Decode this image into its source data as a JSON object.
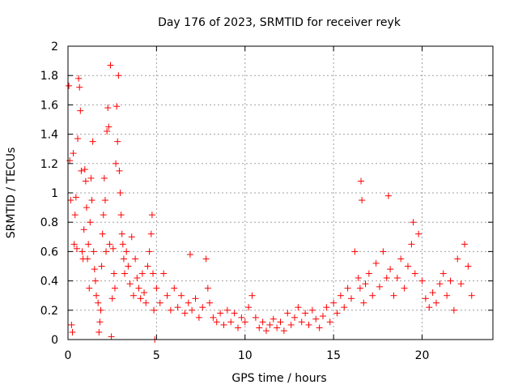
{
  "chart_data": {
    "type": "scatter",
    "title": "Day 176 of 2023, SRMTID for receiver reyk",
    "xlabel": "GPS time / hours",
    "ylabel": "SRMTID / TECUs",
    "xlim": [
      0,
      24
    ],
    "ylim": [
      0,
      2
    ],
    "xticks": [
      0,
      5,
      10,
      15,
      20
    ],
    "xtick_labels": [
      "0",
      "5",
      "10",
      "15",
      "20"
    ],
    "yticks": [
      0,
      0.2,
      0.4,
      0.6,
      0.8,
      1.0,
      1.2,
      1.4,
      1.6,
      1.8,
      2.0
    ],
    "ytick_labels": [
      "0",
      "0.2",
      "0.4",
      "0.6",
      "0.8",
      "1",
      "1.2",
      "1.4",
      "1.6",
      "1.8",
      "2"
    ],
    "grid": true,
    "marker": "+",
    "marker_color": "#ff0000",
    "series": [
      {
        "name": "SRMTID",
        "points": [
          [
            0.05,
            1.73
          ],
          [
            0.1,
            1.22
          ],
          [
            0.15,
            0.95
          ],
          [
            0.2,
            0.1
          ],
          [
            0.25,
            0.05
          ],
          [
            0.3,
            1.27
          ],
          [
            0.35,
            0.65
          ],
          [
            0.4,
            0.85
          ],
          [
            0.45,
            0.97
          ],
          [
            0.5,
            0.62
          ],
          [
            0.55,
            1.37
          ],
          [
            0.6,
            1.78
          ],
          [
            0.65,
            1.72
          ],
          [
            0.7,
            1.56
          ],
          [
            0.75,
            1.15
          ],
          [
            0.8,
            0.6
          ],
          [
            0.85,
            0.55
          ],
          [
            0.9,
            0.75
          ],
          [
            0.95,
            1.16
          ],
          [
            1.0,
            1.08
          ],
          [
            1.05,
            0.9
          ],
          [
            1.1,
            0.55
          ],
          [
            1.15,
            0.65
          ],
          [
            1.2,
            0.35
          ],
          [
            1.25,
            0.8
          ],
          [
            1.3,
            1.1
          ],
          [
            1.35,
            0.95
          ],
          [
            1.4,
            1.35
          ],
          [
            1.45,
            0.6
          ],
          [
            1.5,
            0.48
          ],
          [
            1.55,
            0.4
          ],
          [
            1.6,
            0.3
          ],
          [
            1.7,
            0.25
          ],
          [
            1.75,
            0.05
          ],
          [
            1.8,
            0.12
          ],
          [
            1.85,
            0.2
          ],
          [
            1.9,
            0.5
          ],
          [
            1.95,
            0.72
          ],
          [
            2.0,
            0.85
          ],
          [
            2.05,
            1.1
          ],
          [
            2.1,
            0.95
          ],
          [
            2.15,
            0.6
          ],
          [
            2.2,
            1.42
          ],
          [
            2.25,
            1.58
          ],
          [
            2.3,
            1.45
          ],
          [
            2.35,
            0.65
          ],
          [
            2.4,
            1.87
          ],
          [
            2.45,
            0.02
          ],
          [
            2.5,
            0.28
          ],
          [
            2.55,
            0.62
          ],
          [
            2.6,
            0.45
          ],
          [
            2.65,
            0.35
          ],
          [
            2.7,
            1.2
          ],
          [
            2.75,
            1.59
          ],
          [
            2.8,
            1.35
          ],
          [
            2.85,
            1.8
          ],
          [
            2.9,
            1.15
          ],
          [
            2.95,
            1.0
          ],
          [
            3.0,
            0.85
          ],
          [
            3.05,
            0.72
          ],
          [
            3.1,
            0.65
          ],
          [
            3.15,
            0.55
          ],
          [
            3.2,
            0.45
          ],
          [
            3.3,
            0.6
          ],
          [
            3.4,
            0.5
          ],
          [
            3.5,
            0.38
          ],
          [
            3.6,
            0.7
          ],
          [
            3.7,
            0.3
          ],
          [
            3.8,
            0.55
          ],
          [
            3.9,
            0.42
          ],
          [
            4.0,
            0.35
          ],
          [
            4.1,
            0.28
          ],
          [
            4.2,
            0.45
          ],
          [
            4.3,
            0.32
          ],
          [
            4.4,
            0.25
          ],
          [
            4.5,
            0.5
          ],
          [
            4.6,
            0.6
          ],
          [
            4.7,
            0.72
          ],
          [
            4.75,
            0.85
          ],
          [
            4.8,
            0.45
          ],
          [
            4.85,
            0.2
          ],
          [
            4.9,
            0.0
          ],
          [
            5.0,
            0.35
          ],
          [
            5.2,
            0.25
          ],
          [
            5.4,
            0.45
          ],
          [
            5.6,
            0.3
          ],
          [
            5.8,
            0.2
          ],
          [
            6.0,
            0.35
          ],
          [
            6.2,
            0.22
          ],
          [
            6.4,
            0.3
          ],
          [
            6.6,
            0.18
          ],
          [
            6.8,
            0.25
          ],
          [
            6.9,
            0.58
          ],
          [
            7.0,
            0.2
          ],
          [
            7.2,
            0.28
          ],
          [
            7.4,
            0.15
          ],
          [
            7.6,
            0.22
          ],
          [
            7.8,
            0.55
          ],
          [
            7.9,
            0.35
          ],
          [
            8.0,
            0.25
          ],
          [
            8.2,
            0.15
          ],
          [
            8.4,
            0.12
          ],
          [
            8.6,
            0.18
          ],
          [
            8.8,
            0.1
          ],
          [
            9.0,
            0.2
          ],
          [
            9.2,
            0.12
          ],
          [
            9.4,
            0.18
          ],
          [
            9.6,
            0.08
          ],
          [
            9.8,
            0.15
          ],
          [
            10.0,
            0.12
          ],
          [
            10.2,
            0.22
          ],
          [
            10.4,
            0.3
          ],
          [
            10.6,
            0.15
          ],
          [
            10.8,
            0.08
          ],
          [
            11.0,
            0.12
          ],
          [
            11.2,
            0.06
          ],
          [
            11.4,
            0.1
          ],
          [
            11.6,
            0.14
          ],
          [
            11.8,
            0.08
          ],
          [
            12.0,
            0.12
          ],
          [
            12.2,
            0.06
          ],
          [
            12.4,
            0.18
          ],
          [
            12.6,
            0.1
          ],
          [
            12.8,
            0.15
          ],
          [
            13.0,
            0.22
          ],
          [
            13.2,
            0.12
          ],
          [
            13.4,
            0.18
          ],
          [
            13.6,
            0.1
          ],
          [
            13.8,
            0.2
          ],
          [
            14.0,
            0.14
          ],
          [
            14.2,
            0.08
          ],
          [
            14.4,
            0.16
          ],
          [
            14.6,
            0.22
          ],
          [
            14.8,
            0.12
          ],
          [
            15.0,
            0.25
          ],
          [
            15.2,
            0.18
          ],
          [
            15.4,
            0.3
          ],
          [
            15.6,
            0.22
          ],
          [
            15.8,
            0.35
          ],
          [
            16.0,
            0.28
          ],
          [
            16.2,
            0.6
          ],
          [
            16.4,
            0.42
          ],
          [
            16.5,
            0.35
          ],
          [
            16.55,
            1.08
          ],
          [
            16.6,
            0.95
          ],
          [
            16.7,
            0.25
          ],
          [
            16.8,
            0.38
          ],
          [
            17.0,
            0.45
          ],
          [
            17.2,
            0.3
          ],
          [
            17.4,
            0.52
          ],
          [
            17.6,
            0.36
          ],
          [
            17.8,
            0.6
          ],
          [
            18.0,
            0.42
          ],
          [
            18.1,
            0.98
          ],
          [
            18.2,
            0.48
          ],
          [
            18.4,
            0.3
          ],
          [
            18.6,
            0.42
          ],
          [
            18.8,
            0.55
          ],
          [
            19.0,
            0.35
          ],
          [
            19.2,
            0.5
          ],
          [
            19.4,
            0.65
          ],
          [
            19.5,
            0.8
          ],
          [
            19.6,
            0.45
          ],
          [
            19.8,
            0.72
          ],
          [
            20.0,
            0.4
          ],
          [
            20.2,
            0.28
          ],
          [
            20.4,
            0.22
          ],
          [
            20.6,
            0.32
          ],
          [
            20.8,
            0.25
          ],
          [
            21.0,
            0.38
          ],
          [
            21.2,
            0.45
          ],
          [
            21.4,
            0.3
          ],
          [
            21.6,
            0.4
          ],
          [
            21.8,
            0.2
          ],
          [
            22.0,
            0.55
          ],
          [
            22.2,
            0.38
          ],
          [
            22.4,
            0.65
          ],
          [
            22.6,
            0.5
          ],
          [
            22.8,
            0.3
          ]
        ]
      }
    ]
  }
}
